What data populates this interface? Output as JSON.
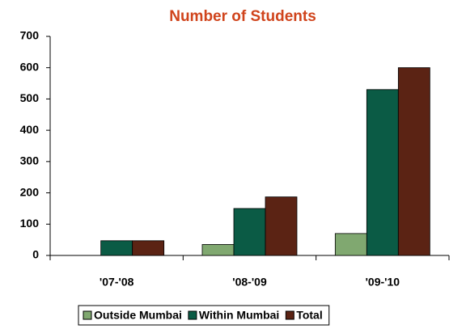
{
  "chart_data": {
    "type": "bar",
    "title": "Number of Students",
    "categories": [
      "'07-'08",
      "'08-'09",
      "'09-'10"
    ],
    "series": [
      {
        "name": "Outside Mumbai",
        "color": "#80a870",
        "values": [
          0,
          35,
          70
        ]
      },
      {
        "name": "Within Mumbai",
        "color": "#0b5b45",
        "values": [
          47,
          150,
          530
        ]
      },
      {
        "name": "Total",
        "color": "#5b2314",
        "values": [
          47,
          187,
          600
        ]
      }
    ],
    "ylim": [
      0,
      700
    ],
    "yticks": [
      0,
      100,
      200,
      300,
      400,
      500,
      600,
      700
    ],
    "grid": false,
    "legend": "bottom"
  }
}
